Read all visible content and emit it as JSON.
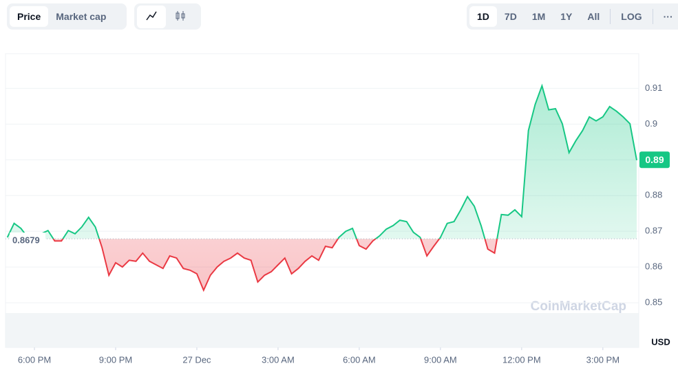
{
  "controls": {
    "metric": [
      "Price",
      "Market cap"
    ],
    "ranges": [
      "1D",
      "7D",
      "1M",
      "1Y",
      "All"
    ],
    "scale": "LOG",
    "more": "···"
  },
  "chart_data": {
    "type": "line",
    "values": [
      0.8683,
      0.8722,
      0.8708,
      0.8683,
      0.8683,
      0.8693,
      0.8702,
      0.8673,
      0.8673,
      0.8702,
      0.8693,
      0.8712,
      0.8739,
      0.8712,
      0.8654,
      0.8577,
      0.8612,
      0.86,
      0.8619,
      0.8616,
      0.8639,
      0.8616,
      0.8606,
      0.8596,
      0.8631,
      0.8625,
      0.8596,
      0.8591,
      0.8581,
      0.8535,
      0.8577,
      0.86,
      0.8616,
      0.8625,
      0.8639,
      0.8625,
      0.8619,
      0.8558,
      0.8577,
      0.8587,
      0.8606,
      0.8625,
      0.8581,
      0.8596,
      0.8616,
      0.8631,
      0.8619,
      0.8658,
      0.8654,
      0.8683,
      0.87,
      0.8708,
      0.866,
      0.865,
      0.8673,
      0.8687,
      0.8706,
      0.8716,
      0.8731,
      0.8727,
      0.8697,
      0.8683,
      0.8631,
      0.8658,
      0.8683,
      0.8722,
      0.8727,
      0.876,
      0.8797,
      0.877,
      0.8716,
      0.865,
      0.8639,
      0.8747,
      0.8745,
      0.876,
      0.8741,
      0.8982,
      0.9055,
      0.9107,
      0.904,
      0.9043,
      0.9001,
      0.892,
      0.8953,
      0.8982,
      0.902,
      0.9009,
      0.902,
      0.9049,
      0.9036,
      0.902,
      0.9001,
      0.8899
    ],
    "up_color": "#16c784",
    "down_color": "#ea3943",
    "reference": {
      "value": 0.8679,
      "label": "0.8679"
    },
    "current_price": 0.89,
    "xlim": [
      0,
      93
    ],
    "xticks": [
      {
        "value": 4,
        "label": "6:00 PM"
      },
      {
        "value": 16,
        "label": "9:00 PM"
      },
      {
        "value": 28,
        "label": "27 Dec"
      },
      {
        "value": 40,
        "label": "3:00 AM"
      },
      {
        "value": 52,
        "label": "6:00 AM"
      },
      {
        "value": 64,
        "label": "9:00 AM"
      },
      {
        "value": 76,
        "label": "12:00 PM"
      },
      {
        "value": 88,
        "label": "3:00 PM"
      }
    ],
    "ylim": [
      0.8375,
      0.9197
    ],
    "yticks": [
      0.85,
      0.86,
      0.87,
      0.88,
      0.89,
      0.9,
      0.91
    ],
    "y_unit": "USD",
    "watermark": "CoinMarketCap",
    "grid": true
  }
}
